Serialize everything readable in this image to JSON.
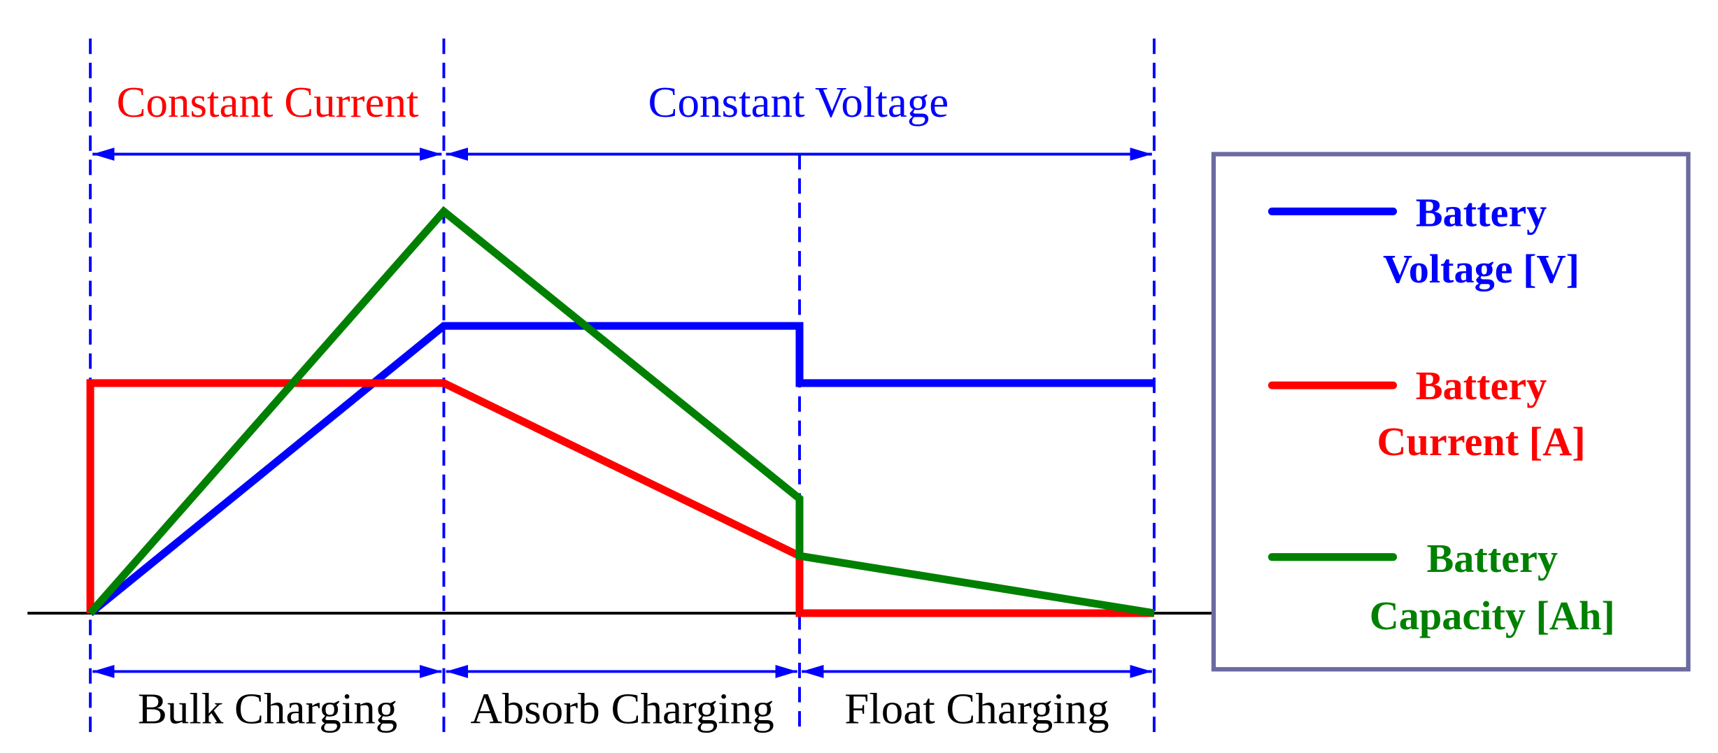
{
  "modes": {
    "constant_current": "Constant Current",
    "constant_voltage": "Constant Voltage"
  },
  "stages": [
    "Bulk Charging",
    "Absorb Charging",
    "Float Charging"
  ],
  "legend": [
    {
      "lines": [
        "Battery",
        "Voltage [V]"
      ]
    },
    {
      "lines": [
        "Battery",
        "Current [A]"
      ]
    },
    {
      "lines": [
        "Battery",
        "Capacity [Ah]"
      ]
    }
  ]
}
